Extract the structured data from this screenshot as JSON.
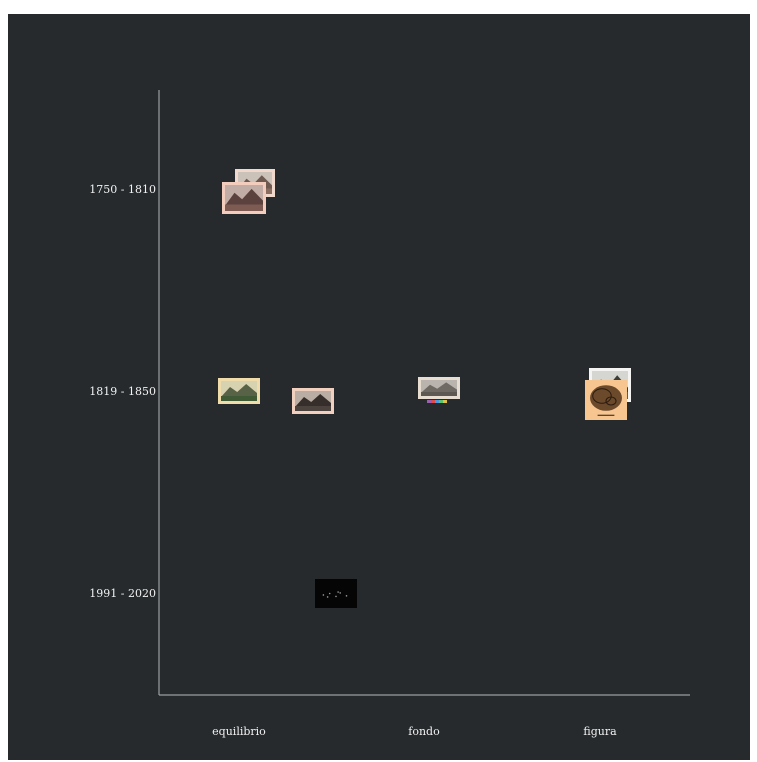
{
  "chart_data": {
    "type": "scatter",
    "title": "",
    "xlabel": "",
    "ylabel": "",
    "x_categories": [
      "equilibrio",
      "fondo",
      "figura"
    ],
    "y_categories": [
      "1750 - 1810",
      "1819 - 1850",
      "1991 - 2020"
    ],
    "points": [
      {
        "x": "equilibrio",
        "y": "1750 - 1810",
        "count": 2,
        "thumbnail": "mountain-landscape-print"
      },
      {
        "x": "equilibrio",
        "y": "1819 - 1850",
        "count": 1,
        "thumbnail": "green-landscape-print"
      },
      {
        "x": "equilibrio",
        "y": "1819 - 1850",
        "count": 1,
        "thumbnail": "dark-landscape-print"
      },
      {
        "x": "fondo",
        "y": "1819 - 1850",
        "count": 1,
        "thumbnail": "grey-landscape-photo"
      },
      {
        "x": "figura",
        "y": "1819 - 1850",
        "count": 2,
        "thumbnail": "sepia-rocky-print"
      },
      {
        "x": "equilibrio",
        "y": "1991 - 2020",
        "count": 1,
        "thumbnail": "black-night-image"
      }
    ],
    "colors": {
      "background": "#262a2d",
      "axis": "#9a9ea2",
      "label": "#f2f2f2"
    },
    "grid": false,
    "legend": "none"
  }
}
